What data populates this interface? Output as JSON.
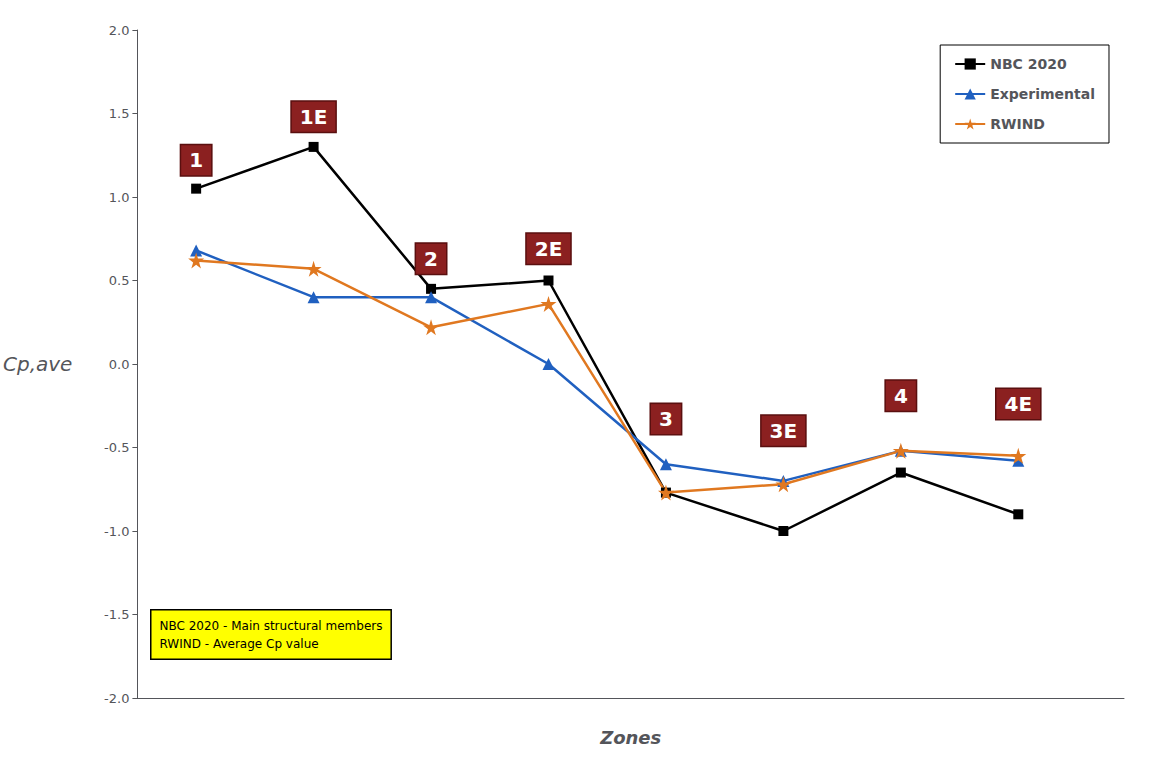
{
  "chart_data": {
    "type": "line",
    "xlabel": "Zones",
    "ylabel": "Cp,ave",
    "x": [
      1,
      2,
      3,
      4,
      5,
      6,
      7,
      8
    ],
    "xlim": [
      0.5,
      8.9
    ],
    "ylim": [
      -2.0,
      2.0
    ],
    "yticks": [
      {
        "value": -2.0,
        "label": "-2.0"
      },
      -1.5,
      {
        "value": -1.0,
        "label": "-1.0"
      },
      -0.5,
      {
        "value": 0.0,
        "label": "0.0"
      },
      0.5,
      {
        "value": 1.0,
        "label": "1.0"
      },
      1.5,
      {
        "value": 2.0,
        "label": "2.0"
      }
    ],
    "tick_labels": "y",
    "grid": false,
    "legend": "upper right",
    "series": [
      {
        "name": "NBC 2020",
        "color": "#000000",
        "marker": "square",
        "values": [
          1.05,
          1.3,
          0.45,
          0.5,
          -0.77,
          -1.0,
          -0.65,
          -0.9
        ]
      },
      {
        "name": "Experimental",
        "color": "#2060c0",
        "marker": "triangle",
        "values": [
          0.68,
          0.4,
          0.4,
          0.0,
          -0.6,
          -0.7,
          -0.52,
          -0.58
        ]
      },
      {
        "name": "RWIND",
        "color": "#e07820",
        "marker": "star",
        "values": [
          0.62,
          0.57,
          0.22,
          0.36,
          -0.77,
          -0.72,
          -0.52,
          -0.55
        ]
      }
    ],
    "annotations": [
      {
        "text": "1",
        "x": 1,
        "y": 1.22,
        "color": "#8B2020"
      },
      {
        "text": "1E",
        "x": 2,
        "y": 1.48,
        "color": "#8B2020"
      },
      {
        "text": "2",
        "x": 3,
        "y": 0.63,
        "color": "#8B2020"
      },
      {
        "text": "2E",
        "x": 4,
        "y": 0.69,
        "color": "#8B2020"
      },
      {
        "text": "3",
        "x": 5,
        "y": -0.33,
        "color": "#8B2020"
      },
      {
        "text": "3E",
        "x": 6,
        "y": -0.4,
        "color": "#8B2020"
      },
      {
        "text": "4",
        "x": 7,
        "y": -0.19,
        "color": "#8B2020"
      },
      {
        "text": "4E",
        "x": 8,
        "y": -0.24,
        "color": "#8B2020"
      },
      {
        "text": "NBC 2020 - Main structural members\nRWIND - Average Cp value",
        "x": 0.62,
        "y": -1.62,
        "color": "yellow"
      }
    ]
  }
}
